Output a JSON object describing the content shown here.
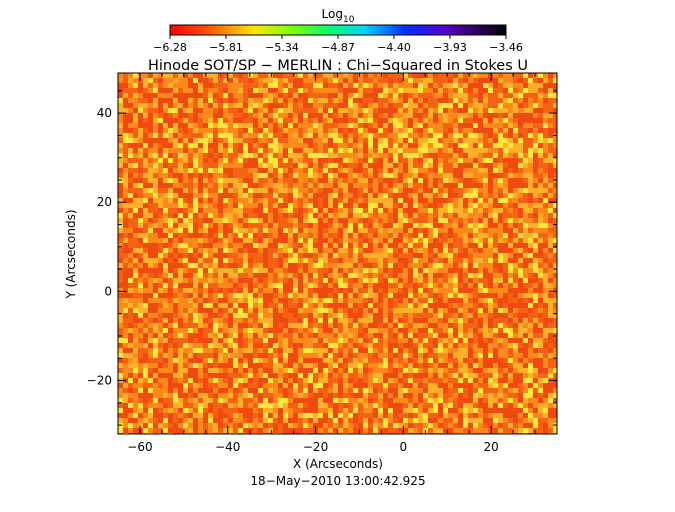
{
  "colorbar": {
    "label": "Log",
    "label_subscript": "10",
    "ticks": [
      "−6.28",
      "−5.81",
      "−5.34",
      "−4.87",
      "−4.40",
      "−3.93",
      "−3.46"
    ],
    "range": [
      -6.28,
      -3.46
    ]
  },
  "chart_data": {
    "type": "heatmap",
    "title": "Hinode SOT/SP − MERLIN : Chi−Squared in Stokes U",
    "xlabel": "X (Arcseconds)",
    "ylabel": "Y (Arcseconds)",
    "xlim": [
      -65,
      35
    ],
    "ylim": [
      -32,
      49
    ],
    "x_ticks": [
      -60,
      -40,
      -20,
      0,
      20
    ],
    "y_ticks": [
      -20,
      0,
      20,
      40
    ],
    "x_tick_labels": [
      "−60",
      "−40",
      "−20",
      "0",
      "20"
    ],
    "y_tick_labels": [
      "−20",
      "0",
      "20",
      "40"
    ],
    "colormap": "rainbow (red low → black high)",
    "value_typical": [
      -6.2,
      -5.9
    ],
    "colors": {
      "background_red": "#f04a10",
      "mid_orange": "#fb8a1a",
      "high_yellow": "#ffe63c"
    }
  },
  "timestamp": "18−May−2010 13:00:42.925"
}
